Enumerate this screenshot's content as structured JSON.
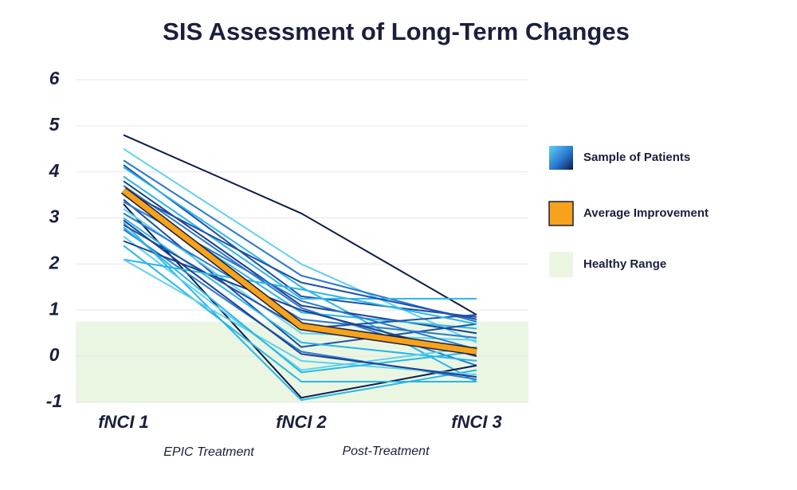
{
  "chart_data": {
    "type": "line",
    "title": "SIS Assessment of Long-Term Changes",
    "categories": [
      "fNCI 1",
      "fNCI 2",
      "fNCI 3"
    ],
    "annotations": [
      "EPIC Treatment",
      "Post-Treatment"
    ],
    "ylim": [
      -1,
      6
    ],
    "yticks": [
      -1,
      0,
      1,
      2,
      3,
      4,
      5,
      6
    ],
    "grid": true,
    "healthy_range": {
      "name": "Healthy Range",
      "color": "#eaf6e2",
      "range": [
        -1,
        0.75
      ]
    },
    "patients": {
      "name": "Sample of Patients",
      "colors": [
        "#0d1b4a",
        "#1f4fa8",
        "#5fd0f0",
        "#2a78d0",
        "#29b6e8",
        "#29b6e8",
        "#1c3f8f",
        "#2a78d0",
        "#29b6e8",
        "#1f4fa8",
        "#0d1b4a",
        "#5fd0f0",
        "#2a78d0",
        "#29b6e8",
        "#29b6e8",
        "#1f4fa8",
        "#2a78d0",
        "#5fd0f0",
        "#1c3f8f",
        "#29b6e8",
        "#29b6e8",
        "#5fd0f0",
        "#1f4fa8",
        "#29b6e8",
        "#2a78d0",
        "#1c3f8f"
      ],
      "values": [
        [
          4.8,
          3.1,
          0.9
        ],
        [
          4.15,
          1.3,
          0.85
        ],
        [
          4.5,
          2.0,
          0.3
        ],
        [
          4.25,
          1.75,
          0.75
        ],
        [
          4.1,
          1.5,
          -0.55
        ],
        [
          3.9,
          1.25,
          1.25
        ],
        [
          3.8,
          1.1,
          0.5
        ],
        [
          3.7,
          1.05,
          -0.2
        ],
        [
          3.5,
          0.95,
          0.6
        ],
        [
          3.4,
          0.2,
          0.7
        ],
        [
          3.3,
          -0.9,
          -0.2
        ],
        [
          3.2,
          0.5,
          0.35
        ],
        [
          3.1,
          0.8,
          0.4
        ],
        [
          3.0,
          0.3,
          -0.1
        ],
        [
          2.9,
          -0.95,
          -0.3
        ],
        [
          2.85,
          0.6,
          0.9
        ],
        [
          2.75,
          0.1,
          -0.5
        ],
        [
          2.6,
          -0.3,
          0.2
        ],
        [
          2.5,
          1.0,
          0.0
        ],
        [
          2.4,
          -0.55,
          -0.55
        ],
        [
          2.1,
          1.45,
          0.7
        ],
        [
          2.1,
          -0.1,
          -0.4
        ],
        [
          3.6,
          1.6,
          0.8
        ],
        [
          2.8,
          -0.35,
          0.1
        ],
        [
          3.35,
          1.2,
          0.15
        ],
        [
          2.95,
          0.05,
          -0.45
        ]
      ]
    },
    "average": {
      "name": "Average Improvement",
      "color": "#f7a21b",
      "values": [
        3.6,
        0.65,
        0.1
      ]
    }
  }
}
